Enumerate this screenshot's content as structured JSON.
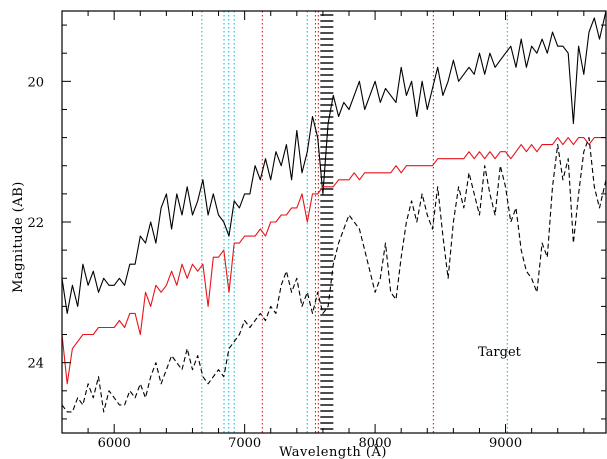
{
  "chart_data": {
    "type": "line",
    "title": "",
    "xlabel": "Wavelength (Å)",
    "ylabel": "Magnitude (AB)",
    "xlim": [
      5600,
      9770
    ],
    "ylim": [
      25.0,
      19.0
    ],
    "y_inverted": true,
    "x_ticks": [
      6000,
      7000,
      8000,
      9000
    ],
    "y_ticks": [
      20,
      22,
      24
    ],
    "annotation": "Target",
    "grid": false,
    "legend": "none",
    "colors": {
      "black": "#000000",
      "red": "#e8141a",
      "cyan": "#00c8d8",
      "dotted_red": "#e8141a",
      "telluric": "#000000"
    },
    "series": [
      {
        "style": "solid",
        "color": "#000000",
        "x": [
          5600,
          5640,
          5680,
          5720,
          5760,
          5800,
          5840,
          5880,
          5920,
          5960,
          6000,
          6040,
          6080,
          6120,
          6160,
          6200,
          6240,
          6280,
          6320,
          6360,
          6400,
          6440,
          6480,
          6520,
          6560,
          6600,
          6640,
          6680,
          6720,
          6760,
          6800,
          6840,
          6880,
          6920,
          6960,
          7000,
          7040,
          7080,
          7120,
          7160,
          7200,
          7240,
          7280,
          7320,
          7360,
          7400,
          7440,
          7480,
          7520,
          7560,
          7600,
          7640,
          7680,
          7720,
          7760,
          7800,
          7840,
          7880,
          7920,
          7960,
          8000,
          8040,
          8080,
          8120,
          8160,
          8200,
          8240,
          8280,
          8320,
          8360,
          8400,
          8440,
          8480,
          8520,
          8560,
          8600,
          8640,
          8680,
          8720,
          8760,
          8800,
          8840,
          8880,
          8920,
          8960,
          9000,
          9040,
          9080,
          9120,
          9160,
          9200,
          9240,
          9280,
          9320,
          9360,
          9400,
          9440,
          9480,
          9520,
          9560,
          9600,
          9640,
          9680,
          9720,
          9770
        ],
        "y": [
          22.8,
          23.3,
          22.9,
          23.2,
          22.6,
          22.9,
          22.7,
          23.0,
          22.8,
          22.9,
          22.9,
          22.8,
          22.9,
          22.6,
          22.6,
          22.2,
          22.3,
          22.0,
          22.3,
          21.8,
          21.6,
          22.1,
          21.6,
          21.9,
          21.5,
          21.9,
          21.7,
          21.4,
          21.9,
          21.6,
          21.9,
          22.0,
          22.2,
          21.7,
          21.8,
          21.6,
          21.6,
          21.2,
          21.4,
          21.1,
          21.4,
          21.0,
          21.2,
          20.9,
          21.4,
          20.7,
          21.3,
          21.0,
          20.5,
          20.8,
          21.6,
          20.6,
          20.2,
          20.5,
          20.3,
          20.4,
          20.2,
          20.0,
          20.4,
          20.2,
          20.0,
          20.3,
          20.1,
          20.2,
          20.3,
          19.8,
          20.2,
          20.0,
          20.5,
          20.0,
          20.4,
          20.1,
          19.8,
          20.2,
          20.0,
          19.7,
          20.0,
          19.9,
          19.8,
          19.9,
          19.6,
          19.9,
          19.6,
          19.8,
          19.7,
          19.6,
          19.5,
          19.8,
          19.4,
          19.8,
          19.5,
          19.6,
          19.4,
          19.6,
          19.3,
          19.5,
          19.5,
          19.6,
          20.6,
          19.5,
          19.9,
          19.3,
          19.1,
          19.4,
          19.0
        ]
      },
      {
        "style": "solid",
        "color": "#e8141a",
        "x": [
          5600,
          5640,
          5680,
          5720,
          5760,
          5800,
          5840,
          5880,
          5920,
          5960,
          6000,
          6040,
          6080,
          6120,
          6160,
          6200,
          6240,
          6280,
          6320,
          6360,
          6400,
          6440,
          6480,
          6520,
          6560,
          6600,
          6640,
          6680,
          6720,
          6760,
          6800,
          6840,
          6880,
          6920,
          6960,
          7000,
          7040,
          7080,
          7120,
          7160,
          7200,
          7240,
          7280,
          7320,
          7360,
          7400,
          7440,
          7480,
          7520,
          7560,
          7600,
          7640,
          7680,
          7720,
          7760,
          7800,
          7840,
          7880,
          7920,
          7960,
          8000,
          8040,
          8080,
          8120,
          8160,
          8200,
          8240,
          8280,
          8320,
          8360,
          8400,
          8440,
          8480,
          8520,
          8560,
          8600,
          8640,
          8680,
          8720,
          8760,
          8800,
          8840,
          8880,
          8920,
          8960,
          9000,
          9040,
          9080,
          9120,
          9160,
          9200,
          9240,
          9280,
          9320,
          9360,
          9400,
          9440,
          9480,
          9520,
          9560,
          9600,
          9640,
          9680,
          9720,
          9770
        ],
        "y": [
          23.6,
          24.3,
          23.8,
          23.7,
          23.6,
          23.6,
          23.6,
          23.5,
          23.5,
          23.5,
          23.5,
          23.4,
          23.5,
          23.3,
          23.3,
          23.6,
          23.0,
          23.2,
          22.9,
          23.0,
          22.9,
          22.7,
          22.9,
          22.6,
          22.8,
          22.6,
          22.7,
          22.6,
          23.2,
          22.5,
          22.5,
          22.4,
          23.0,
          22.3,
          22.3,
          22.2,
          22.2,
          22.2,
          22.1,
          22.2,
          22.0,
          22.0,
          21.9,
          21.9,
          21.8,
          21.8,
          21.6,
          22.0,
          21.6,
          21.6,
          21.5,
          21.5,
          21.5,
          21.4,
          21.4,
          21.4,
          21.3,
          21.4,
          21.3,
          21.3,
          21.3,
          21.3,
          21.3,
          21.3,
          21.2,
          21.3,
          21.2,
          21.2,
          21.2,
          21.2,
          21.2,
          21.2,
          21.1,
          21.1,
          21.1,
          21.1,
          21.1,
          21.1,
          21.0,
          21.1,
          21.0,
          21.1,
          21.0,
          21.1,
          21.0,
          21.0,
          21.1,
          21.0,
          20.9,
          21.0,
          20.9,
          21.0,
          20.9,
          20.9,
          20.9,
          20.8,
          20.9,
          20.8,
          20.9,
          20.8,
          20.8,
          20.9,
          20.8,
          20.8,
          20.8
        ]
      },
      {
        "style": "dashed",
        "color": "#000000",
        "x": [
          5600,
          5640,
          5680,
          5720,
          5760,
          5800,
          5840,
          5880,
          5920,
          5960,
          6000,
          6040,
          6080,
          6120,
          6160,
          6200,
          6240,
          6280,
          6320,
          6360,
          6400,
          6440,
          6480,
          6520,
          6560,
          6600,
          6640,
          6680,
          6720,
          6760,
          6800,
          6840,
          6880,
          6920,
          6960,
          7000,
          7040,
          7080,
          7120,
          7160,
          7200,
          7240,
          7280,
          7320,
          7360,
          7400,
          7440,
          7480,
          7520,
          7560,
          7600,
          7640,
          7680,
          7720,
          7760,
          7800,
          7840,
          7880,
          7920,
          7960,
          8000,
          8040,
          8080,
          8120,
          8160,
          8200,
          8240,
          8280,
          8320,
          8360,
          8400,
          8440,
          8480,
          8520,
          8560,
          8600,
          8640,
          8680,
          8720,
          8760,
          8800,
          8840,
          8880,
          8920,
          8960,
          9000,
          9040,
          9080,
          9120,
          9160,
          9200,
          9240,
          9280,
          9320,
          9360,
          9400,
          9440,
          9480,
          9520,
          9560,
          9600,
          9640,
          9680,
          9720,
          9770
        ],
        "y": [
          24.6,
          24.7,
          24.7,
          24.5,
          24.6,
          24.3,
          24.5,
          24.2,
          24.7,
          24.4,
          24.5,
          24.6,
          24.6,
          24.4,
          24.5,
          24.3,
          24.5,
          24.2,
          24.0,
          24.3,
          24.1,
          23.9,
          24.0,
          24.1,
          23.8,
          24.1,
          23.9,
          24.2,
          24.3,
          24.2,
          24.1,
          24.2,
          23.8,
          23.7,
          23.6,
          23.4,
          23.5,
          23.4,
          23.3,
          23.4,
          23.2,
          23.3,
          22.9,
          22.7,
          23.0,
          22.8,
          23.2,
          23.0,
          23.3,
          23.0,
          23.3,
          23.2,
          22.6,
          22.3,
          22.1,
          21.9,
          22.0,
          22.1,
          22.4,
          22.7,
          23.0,
          22.8,
          22.3,
          23.0,
          23.1,
          22.5,
          22.0,
          21.7,
          22.0,
          21.6,
          21.9,
          22.1,
          21.5,
          22.2,
          22.8,
          22.0,
          21.5,
          21.8,
          21.3,
          21.6,
          21.9,
          21.2,
          21.6,
          21.9,
          21.2,
          21.5,
          22.0,
          21.8,
          22.4,
          22.7,
          22.8,
          23.0,
          22.3,
          22.5,
          21.5,
          20.9,
          21.4,
          21.1,
          22.3,
          21.6,
          21.0,
          20.8,
          21.5,
          21.8,
          21.4
        ]
      }
    ],
    "vlines": [
      {
        "x": 6672,
        "color": "#00c8d8",
        "style": "dotted"
      },
      {
        "x": 6842,
        "color": "#00c8d8",
        "style": "dotted"
      },
      {
        "x": 6878,
        "color": "#00c8d8",
        "style": "dotted"
      },
      {
        "x": 6920,
        "color": "#00c8d8",
        "style": "dotted"
      },
      {
        "x": 7136,
        "color": "#e8141a",
        "style": "dotted"
      },
      {
        "x": 7480,
        "color": "#00c8d8",
        "style": "dotted"
      },
      {
        "x": 7543,
        "color": "#e8141a",
        "style": "dotted"
      },
      {
        "x": 7565,
        "color": "#e8141a",
        "style": "dotted"
      },
      {
        "x": 8447,
        "color": "#e8141a",
        "style": "dotted"
      },
      {
        "x": 9014,
        "color": "#00c8d8",
        "style": "dotted"
      }
    ],
    "telluric_band": {
      "x0": 7580,
      "x1": 7680,
      "style": "hatched"
    }
  }
}
